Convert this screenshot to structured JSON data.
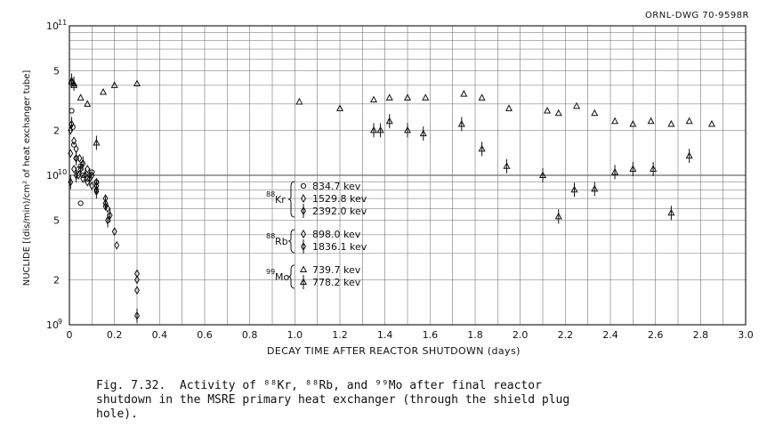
{
  "drawing_id": "ORNL-DWG 70-9598R",
  "caption": "Fig. 7.32.  Activity of ⁸⁸Kr, ⁸⁸Rb, and ⁹⁹Mo after final reactor\nshutdown in the MSRE primary heat exchanger (through the shield plug\nhole).",
  "chart_data": {
    "type": "scatter",
    "xlabel": "DECAY TIME AFTER REACTOR SHUTDOWN (days)",
    "ylabel": "NUCLIDE [(dis/min)/cm² of heat exchanger tube]",
    "xlim": [
      0,
      3.0
    ],
    "ylim": [
      1000000000.0,
      100000000000.0
    ],
    "yscale": "log",
    "grid": true,
    "x_ticks": [
      "0",
      "0.2",
      "0.4",
      "0.6",
      "0.8",
      "1.0",
      "1.2",
      "1.4",
      "1.6",
      "1.8",
      "2.0",
      "2.2",
      "2.4",
      "2.6",
      "2.8",
      "3.0"
    ],
    "y_ticks": [
      {
        "value": 1000000000.0,
        "base": "10",
        "exp": "9"
      },
      {
        "value": 2000000000.0,
        "base": "2",
        "exp": ""
      },
      {
        "value": 5000000000.0,
        "base": "5",
        "exp": ""
      },
      {
        "value": 10000000000.0,
        "base": "10",
        "exp": "10"
      },
      {
        "value": 20000000000.0,
        "base": "2",
        "exp": ""
      },
      {
        "value": 50000000000.0,
        "base": "5",
        "exp": ""
      },
      {
        "value": 100000000000.0,
        "base": "10",
        "exp": "11"
      }
    ],
    "legend": {
      "placement": "center",
      "groups": [
        {
          "nuclide": "Kr",
          "mass": "88",
          "entries": [
            {
              "marker": "circle",
              "label": "834.7 kev"
            },
            {
              "marker": "diamond",
              "label": "1529.8 kev"
            },
            {
              "marker": "diamond-bar",
              "label": "2392.0 kev"
            }
          ]
        },
        {
          "nuclide": "Rb",
          "mass": "88",
          "entries": [
            {
              "marker": "diamond",
              "label": "898.0 kev"
            },
            {
              "marker": "diamond-bar",
              "label": "1836.1 kev"
            }
          ]
        },
        {
          "nuclide": "Mo",
          "mass": "99",
          "entries": [
            {
              "marker": "triangle",
              "label": "739.7 kev"
            },
            {
              "marker": "triangle-bar",
              "label": "778.2 kev"
            }
          ]
        }
      ]
    },
    "series": [
      {
        "name": "Mo-99 739.7 kev",
        "marker": "triangle",
        "x": [
          0.01,
          0.02,
          0.05,
          0.08,
          0.15,
          0.2,
          0.3,
          1.02,
          1.2,
          1.35,
          1.42,
          1.5,
          1.58,
          1.75,
          1.83,
          1.95,
          2.12,
          2.17,
          2.25,
          2.33,
          2.42,
          2.5,
          2.58,
          2.67,
          2.75,
          2.85
        ],
        "y": [
          42000000000.0,
          40000000000.0,
          33000000000.0,
          30000000000.0,
          36000000000.0,
          40000000000.0,
          41000000000.0,
          31000000000.0,
          28000000000.0,
          32000000000.0,
          33000000000.0,
          33000000000.0,
          33000000000.0,
          35000000000.0,
          33000000000.0,
          28000000000.0,
          27000000000.0,
          26000000000.0,
          29000000000.0,
          26000000000.0,
          23000000000.0,
          22000000000.0,
          23000000000.0,
          22000000000.0,
          23000000000.0,
          22000000000.0
        ]
      },
      {
        "name": "Mo-99 778.2 kev",
        "marker": "triangle-bar",
        "x": [
          0.01,
          0.02,
          0.12,
          1.35,
          1.38,
          1.42,
          1.5,
          1.57,
          1.74,
          1.83,
          1.94,
          2.1,
          2.17,
          2.24,
          2.33,
          2.42,
          2.5,
          2.59,
          2.67,
          2.75
        ],
        "y": [
          43000000000.0,
          41000000000.0,
          16500000000.0,
          20000000000.0,
          20000000000.0,
          23000000000.0,
          20000000000.0,
          19000000000.0,
          22000000000.0,
          15000000000.0,
          11500000000.0,
          10000000000.0,
          5300000000.0,
          8000000000.0,
          8100000000.0,
          10500000000.0,
          11000000000.0,
          11000000000.0,
          5600000000.0,
          13500000000.0
        ]
      },
      {
        "name": "Kr-88 834.7 kev",
        "marker": "circle",
        "x": [
          0.01,
          0.015,
          0.02,
          0.03,
          0.04,
          0.05,
          0.06,
          0.08,
          0.1,
          0.12,
          0.05
        ],
        "y": [
          27000000000.0,
          21000000000.0,
          16000000000.0,
          13000000000.0,
          11000000000.0,
          11500000000.0,
          10000000000.0,
          9500000000.0,
          10500000000.0,
          9000000000.0,
          6500000000.0
        ]
      },
      {
        "name": "Kr-88 1529.8 kev",
        "marker": "diamond",
        "x": [
          0.005,
          0.02,
          0.03,
          0.045,
          0.06,
          0.08,
          0.1,
          0.12,
          0.16,
          0.17,
          0.2,
          0.3,
          0.3
        ],
        "y": [
          20000000000.0,
          17000000000.0,
          15000000000.0,
          13000000000.0,
          12000000000.0,
          11000000000.0,
          10000000000.0,
          9000000000.0,
          7000000000.0,
          6000000000.0,
          4200000000.0,
          2200000000.0,
          2000000000.0
        ]
      },
      {
        "name": "Kr-88 2392.0 kev",
        "marker": "diamond-bar",
        "x": [
          0.01,
          0.03,
          0.05,
          0.07,
          0.09,
          0.12,
          0.16,
          0.18
        ],
        "y": [
          22000000000.0,
          13000000000.0,
          11000000000.0,
          10000000000.0,
          9500000000.0,
          8500000000.0,
          6500000000.0,
          5400000000.0
        ]
      },
      {
        "name": "Rb-88 898.0 kev",
        "marker": "diamond",
        "x": [
          0.005,
          0.02,
          0.04,
          0.06,
          0.08,
          0.1,
          0.12,
          0.16,
          0.21,
          0.3
        ],
        "y": [
          14000000000.0,
          11000000000.0,
          10000000000.0,
          9500000000.0,
          9000000000.0,
          8500000000.0,
          8000000000.0,
          6200000000.0,
          3400000000.0,
          1700000000.0
        ]
      },
      {
        "name": "Rb-88 1836.1 kev",
        "marker": "diamond-bar",
        "x": [
          0.005,
          0.03,
          0.06,
          0.09,
          0.12,
          0.17,
          0.3
        ],
        "y": [
          9000000000.0,
          10000000000.0,
          12000000000.0,
          10000000000.0,
          7800000000.0,
          5000000000.0,
          1150000000.0
        ]
      }
    ]
  }
}
